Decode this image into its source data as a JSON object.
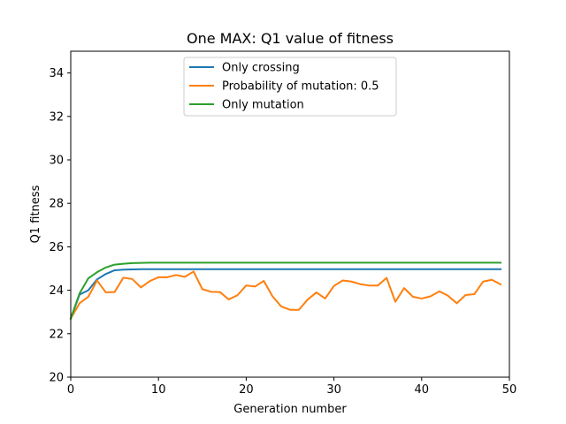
{
  "chart_data": {
    "type": "line",
    "title": "One MAX: Q1 value of fitness",
    "xlabel": "Generation number",
    "ylabel": "Q1 fitness",
    "xlim": [
      0,
      50
    ],
    "ylim": [
      20,
      35
    ],
    "xticks": [
      0,
      10,
      20,
      30,
      40,
      50
    ],
    "yticks": [
      20,
      22,
      24,
      26,
      28,
      30,
      32,
      34
    ],
    "grid": false,
    "legend_position": "upper-center",
    "series": [
      {
        "name": "Only crossing",
        "color": "#1f77b4",
        "x": [
          0,
          1,
          2,
          3,
          4,
          5,
          6,
          7,
          8,
          9,
          10,
          11,
          12,
          13,
          14,
          15,
          16,
          17,
          18,
          19,
          20,
          21,
          22,
          23,
          24,
          25,
          26,
          27,
          28,
          29,
          30,
          31,
          32,
          33,
          34,
          35,
          36,
          37,
          38,
          39,
          40,
          41,
          42,
          43,
          44,
          45,
          46,
          47,
          48,
          49
        ],
        "y": [
          22.7,
          23.8,
          24.0,
          24.5,
          24.75,
          24.92,
          24.95,
          24.96,
          24.97,
          24.97,
          24.97,
          24.97,
          24.97,
          24.97,
          24.97,
          24.97,
          24.97,
          24.97,
          24.97,
          24.97,
          24.97,
          24.97,
          24.97,
          24.97,
          24.97,
          24.97,
          24.97,
          24.97,
          24.97,
          24.97,
          24.97,
          24.97,
          24.97,
          24.97,
          24.97,
          24.97,
          24.97,
          24.97,
          24.97,
          24.97,
          24.97,
          24.97,
          24.97,
          24.97,
          24.97,
          24.97,
          24.97,
          24.97,
          24.97,
          24.97
        ]
      },
      {
        "name": "Probability of mutation: 0.5",
        "color": "#ff7f0e",
        "x": [
          0,
          1,
          2,
          3,
          4,
          5,
          6,
          7,
          8,
          9,
          10,
          11,
          12,
          13,
          14,
          15,
          16,
          17,
          18,
          19,
          20,
          21,
          22,
          23,
          24,
          25,
          26,
          27,
          28,
          29,
          30,
          31,
          32,
          33,
          34,
          35,
          36,
          37,
          38,
          39,
          40,
          41,
          42,
          43,
          44,
          45,
          46,
          47,
          48,
          49
        ],
        "y": [
          22.7,
          23.4,
          23.7,
          24.45,
          23.9,
          23.92,
          24.58,
          24.52,
          24.13,
          24.42,
          24.6,
          24.6,
          24.7,
          24.62,
          24.86,
          24.05,
          23.93,
          23.92,
          23.58,
          23.77,
          24.22,
          24.17,
          24.43,
          23.72,
          23.25,
          23.1,
          23.1,
          23.57,
          23.9,
          23.62,
          24.2,
          24.45,
          24.4,
          24.28,
          24.22,
          24.22,
          24.57,
          23.47,
          24.1,
          23.7,
          23.62,
          23.72,
          23.95,
          23.75,
          23.4,
          23.78,
          23.82,
          24.4,
          24.48,
          24.27
        ]
      },
      {
        "name": "Only mutation",
        "color": "#2ca02c",
        "x": [
          0,
          1,
          2,
          3,
          4,
          5,
          6,
          7,
          8,
          9,
          10,
          11,
          12,
          13,
          14,
          15,
          16,
          17,
          18,
          19,
          20,
          21,
          22,
          23,
          24,
          25,
          26,
          27,
          28,
          29,
          30,
          31,
          32,
          33,
          34,
          35,
          36,
          37,
          38,
          39,
          40,
          41,
          42,
          43,
          44,
          45,
          46,
          47,
          48,
          49
        ],
        "y": [
          22.7,
          23.85,
          24.55,
          24.83,
          25.05,
          25.18,
          25.22,
          25.25,
          25.26,
          25.27,
          25.27,
          25.27,
          25.27,
          25.27,
          25.27,
          25.27,
          25.27,
          25.27,
          25.27,
          25.27,
          25.27,
          25.27,
          25.27,
          25.27,
          25.27,
          25.27,
          25.27,
          25.27,
          25.27,
          25.27,
          25.27,
          25.27,
          25.27,
          25.27,
          25.27,
          25.27,
          25.27,
          25.27,
          25.27,
          25.27,
          25.27,
          25.27,
          25.27,
          25.27,
          25.27,
          25.27,
          25.27,
          25.27,
          25.27,
          25.27
        ]
      }
    ]
  }
}
